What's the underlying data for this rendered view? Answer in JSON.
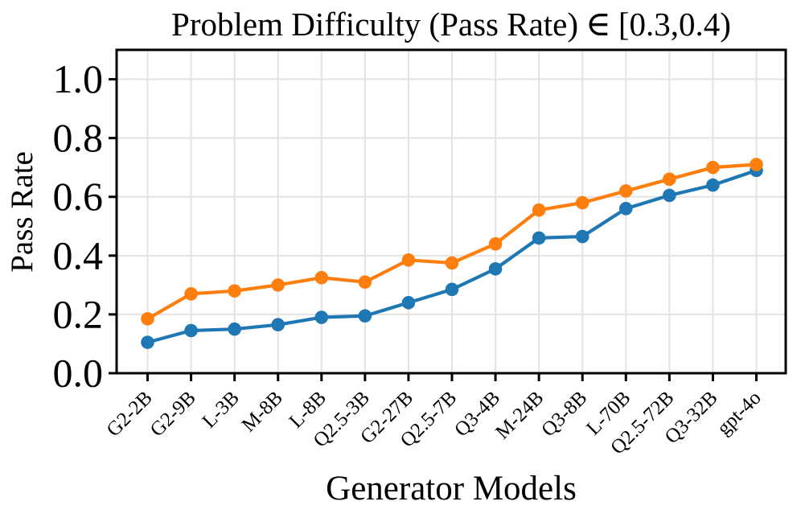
{
  "chart_data": {
    "type": "line",
    "title": "Problem Difficulty (Pass Rate) ∈ [0.3,0.4)",
    "title_parts": {
      "pre": "Problem Difficulty (Pass Rate)",
      "symbol": "∈",
      "post": "[0.3,0.4)"
    },
    "xlabel": "Generator Models",
    "ylabel": "Pass Rate",
    "categories": [
      "G2-2B",
      "G2-9B",
      "L-3B",
      "M-8B",
      "L-8B",
      "Q2.5-3B",
      "G2-27B",
      "Q2.5-7B",
      "Q3-4B",
      "M-24B",
      "Q3-8B",
      "L-70B",
      "Q2.5-72B",
      "Q3-32B",
      "gpt-4o"
    ],
    "series": [
      {
        "name": "blue",
        "color": "#1f77b4",
        "values": [
          0.105,
          0.145,
          0.15,
          0.165,
          0.19,
          0.195,
          0.24,
          0.285,
          0.355,
          0.46,
          0.465,
          0.56,
          0.605,
          0.64,
          0.69
        ]
      },
      {
        "name": "orange",
        "color": "#ff7f0e",
        "values": [
          0.185,
          0.27,
          0.28,
          0.3,
          0.325,
          0.31,
          0.385,
          0.375,
          0.44,
          0.555,
          0.58,
          0.62,
          0.66,
          0.7,
          0.71
        ]
      }
    ],
    "ylim": [
      0,
      1.1
    ],
    "yticks": [
      0.0,
      0.2,
      0.4,
      0.6,
      0.8,
      1.0
    ],
    "ytick_labels": [
      "0.0",
      "0.2",
      "0.4",
      "0.6",
      "0.8",
      "1.0"
    ],
    "x_tick_rotation": 45,
    "grid": true,
    "legend": "none"
  },
  "colors": {
    "background": "#ffffff",
    "grid": "#e3e3e3",
    "axis": "#000000",
    "series_blue": "#1f77b4",
    "series_orange": "#ff7f0e"
  }
}
